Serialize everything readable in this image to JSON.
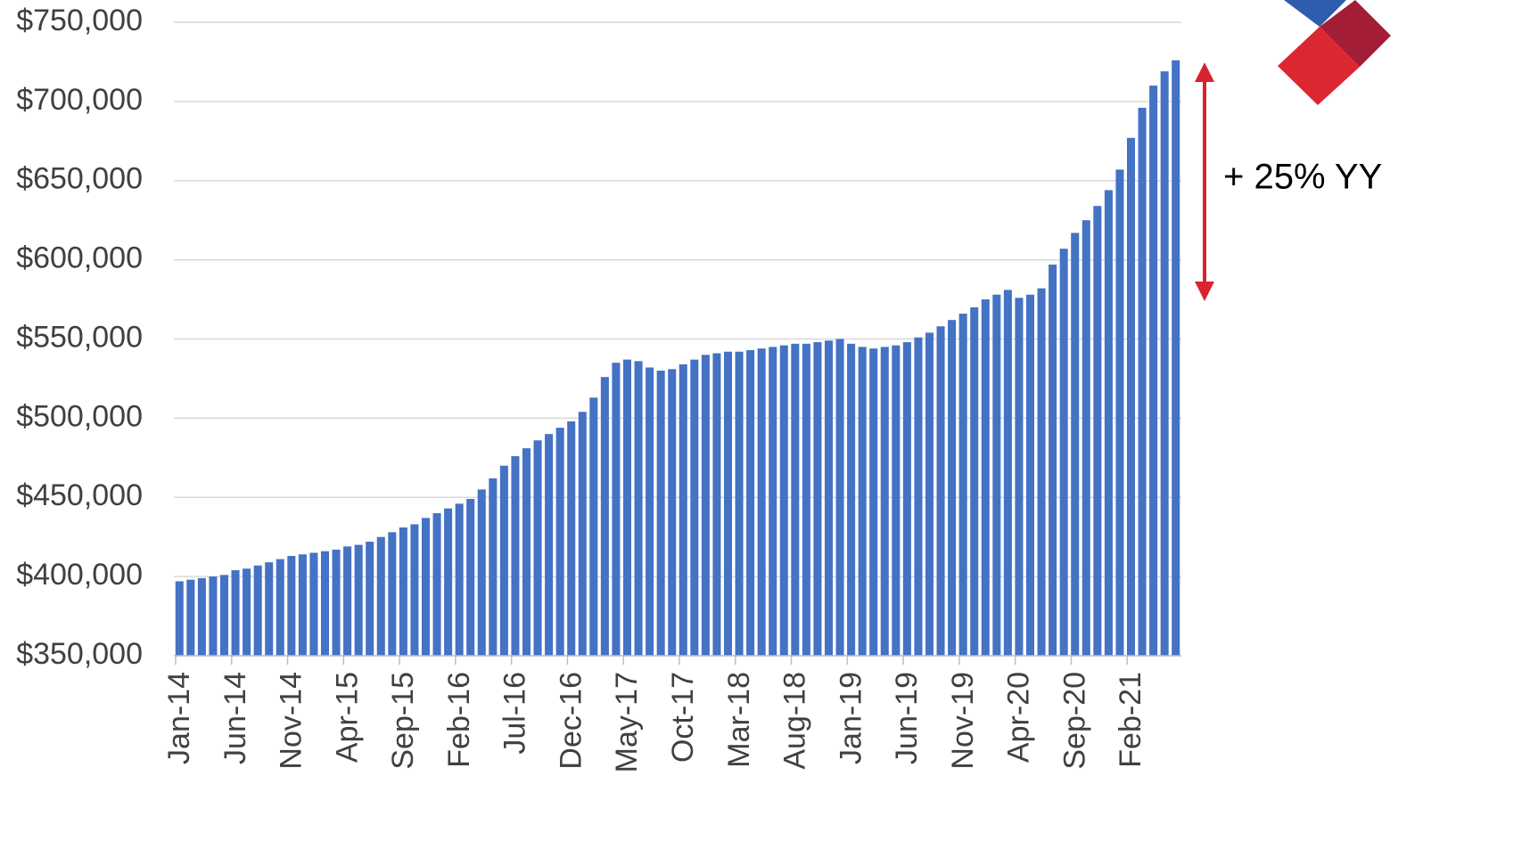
{
  "chart_data": {
    "type": "bar",
    "annotation": "+ 25% YY",
    "categories": [
      "Jan-14",
      null,
      null,
      null,
      null,
      "Jun-14",
      null,
      null,
      null,
      null,
      "Nov-14",
      null,
      null,
      null,
      null,
      "Apr-15",
      null,
      null,
      null,
      null,
      "Sep-15",
      null,
      null,
      null,
      null,
      "Feb-16",
      null,
      null,
      null,
      null,
      "Jul-16",
      null,
      null,
      null,
      null,
      "Dec-16",
      null,
      null,
      null,
      null,
      "May-17",
      null,
      null,
      null,
      null,
      "Oct-17",
      null,
      null,
      null,
      null,
      "Mar-18",
      null,
      null,
      null,
      null,
      "Aug-18",
      null,
      null,
      null,
      null,
      "Jan-19",
      null,
      null,
      null,
      null,
      "Jun-19",
      null,
      null,
      null,
      null,
      "Nov-19",
      null,
      null,
      null,
      null,
      "Apr-20",
      null,
      null,
      null,
      null,
      "Sep-20",
      null,
      null,
      null,
      null,
      "Feb-21",
      null,
      null,
      null,
      null
    ],
    "values": [
      397000,
      398000,
      399000,
      400000,
      401000,
      404000,
      405000,
      407000,
      409000,
      411000,
      413000,
      414000,
      415000,
      416000,
      417000,
      419000,
      420000,
      422000,
      425000,
      428000,
      431000,
      433000,
      437000,
      440000,
      443000,
      446000,
      449000,
      455000,
      462000,
      470000,
      476000,
      481000,
      486000,
      490000,
      494000,
      498000,
      504000,
      513000,
      526000,
      535000,
      537000,
      536000,
      532000,
      530000,
      531000,
      534000,
      537000,
      540000,
      541000,
      542000,
      542000,
      543000,
      544000,
      545000,
      546000,
      547000,
      547000,
      548000,
      549000,
      550000,
      547000,
      545000,
      544000,
      545000,
      546000,
      548000,
      551000,
      554000,
      558000,
      562000,
      566000,
      570000,
      575000,
      578000,
      581000,
      576000,
      578000,
      582000,
      597000,
      607000,
      617000,
      625000,
      634000,
      644000,
      657000,
      677000,
      696000,
      710000,
      719000,
      726000
    ],
    "color": "#4472c4",
    "ylim": [
      350000,
      750000
    ],
    "yticks": [
      {
        "value": 350000,
        "label": "$350,000"
      },
      {
        "value": 400000,
        "label": "$400,000"
      },
      {
        "value": 450000,
        "label": "$450,000"
      },
      {
        "value": 500000,
        "label": "$500,000"
      },
      {
        "value": 550000,
        "label": "$550,000"
      },
      {
        "value": 600000,
        "label": "$600,000"
      },
      {
        "value": 650000,
        "label": "$650,000"
      },
      {
        "value": 700000,
        "label": "$700,000"
      },
      {
        "value": 750000,
        "label": "$750,000"
      }
    ],
    "grid": true
  }
}
